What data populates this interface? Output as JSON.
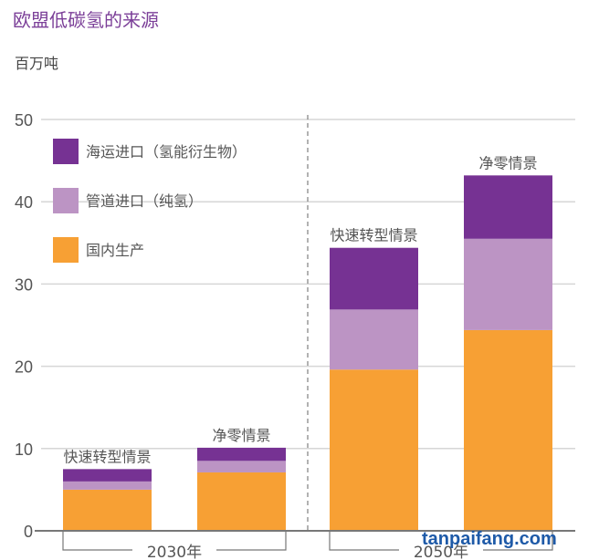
{
  "title": "欧盟低碳氢的来源",
  "unit": "百万吨",
  "watermark": "tanpaifang.com",
  "chart_data": {
    "type": "bar",
    "stacked": true,
    "title": "欧盟低碳氢的来源",
    "ylabel": "百万吨",
    "ylim": [
      0,
      50
    ],
    "yticks": [
      "0",
      "10",
      "20",
      "30",
      "40",
      "50"
    ],
    "grid": true,
    "legend_placement": "top-left",
    "groups": [
      "2030年",
      "2050年"
    ],
    "categories": [
      "快速转型情景",
      "净零情景",
      "快速转型情景",
      "净零情景"
    ],
    "series": [
      {
        "name": "国内生产",
        "color": "#f7a034",
        "values": [
          5.0,
          7.1,
          19.6,
          24.4
        ]
      },
      {
        "name": "管道进口（纯氢）",
        "color": "#bc94c4",
        "values": [
          1.0,
          1.4,
          7.3,
          11.1
        ]
      },
      {
        "name": "海运进口（氢能衍生物）",
        "color": "#763293",
        "values": [
          1.5,
          1.6,
          7.5,
          7.7
        ]
      }
    ],
    "legend_order": [
      2,
      1,
      0
    ]
  }
}
